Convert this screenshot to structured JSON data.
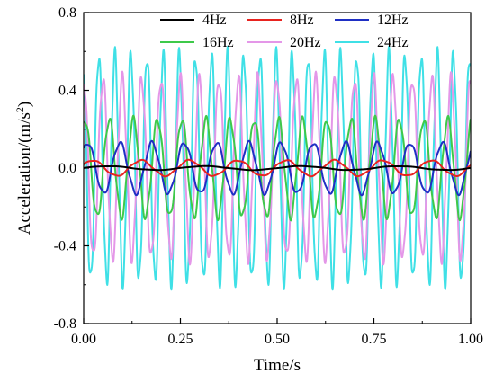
{
  "chart_data": {
    "type": "line",
    "title": "",
    "xlabel": "Time/s",
    "ylabel_main": "Acceleration/(m/s",
    "ylabel_sup": "2",
    "ylabel_close": ")",
    "xlim": [
      0.0,
      1.0
    ],
    "ylim": [
      -0.8,
      0.8
    ],
    "x_ticks": [
      {
        "value": 0.0,
        "label": "0.00"
      },
      {
        "value": 0.25,
        "label": "0.25"
      },
      {
        "value": 0.5,
        "label": "0.50"
      },
      {
        "value": 0.75,
        "label": "0.75"
      },
      {
        "value": 1.0,
        "label": "1.00"
      }
    ],
    "y_ticks": [
      {
        "value": -0.8,
        "label": "-0.8"
      },
      {
        "value": -0.4,
        "label": "-0.4"
      },
      {
        "value": 0.0,
        "label": "0.0"
      },
      {
        "value": 0.4,
        "label": "0.4"
      },
      {
        "value": 0.8,
        "label": "0.8"
      }
    ],
    "grid": false,
    "legend_position": "top",
    "series": [
      {
        "name": "4Hz",
        "color": "#000000",
        "frequency_hz": 4,
        "amplitude": 0.01
      },
      {
        "name": "8Hz",
        "color": "#e8231f",
        "frequency_hz": 8,
        "amplitude": 0.04
      },
      {
        "name": "12Hz",
        "color": "#1f2fc4",
        "frequency_hz": 12,
        "amplitude": 0.13
      },
      {
        "name": "16Hz",
        "color": "#3ec94a",
        "frequency_hz": 16,
        "amplitude": 0.25
      },
      {
        "name": "20Hz",
        "color": "#e497e8",
        "frequency_hz": 20,
        "amplitude": 0.46
      },
      {
        "name": "24Hz",
        "color": "#3fe0e6",
        "frequency_hz": 24,
        "amplitude": 0.58
      }
    ]
  }
}
